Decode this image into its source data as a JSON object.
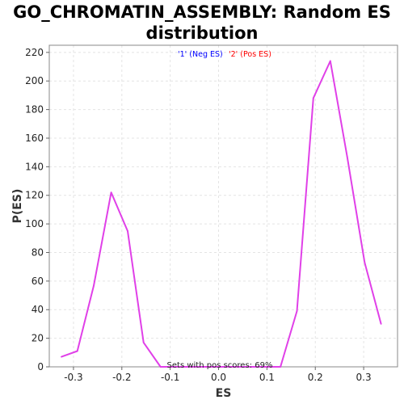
{
  "chart_data": {
    "type": "line",
    "title_line1": "GO_CHROMATIN_ASSEMBLY: Random ES",
    "title_line2": "distribution",
    "xlabel": "ES",
    "ylabel": "P(ES)",
    "xlim": [
      -0.35,
      0.37
    ],
    "ylim": [
      0,
      225
    ],
    "x_ticks": [
      "-0.3",
      "-0.2",
      "-0.1",
      "0.0",
      "0.1",
      "0.2",
      "0.3"
    ],
    "x_tick_values": [
      -0.3,
      -0.2,
      -0.1,
      0.0,
      0.1,
      0.2,
      0.3
    ],
    "y_ticks": [
      "0",
      "20",
      "40",
      "60",
      "80",
      "100",
      "120",
      "140",
      "160",
      "180",
      "200",
      "220"
    ],
    "y_tick_values": [
      0,
      20,
      40,
      60,
      80,
      100,
      120,
      140,
      160,
      180,
      200,
      220
    ],
    "grid": true,
    "legend": [
      {
        "label": "'1' (Neg ES)",
        "color": "#0000ff"
      },
      {
        "label": "'2' (Pos ES)",
        "color": "#ff0000"
      }
    ],
    "annotation": "Sets with pos scores: 69%",
    "series": [
      {
        "color": "#e040e8",
        "x": [
          -0.325,
          -0.292,
          -0.258,
          -0.222,
          -0.188,
          -0.155,
          -0.12,
          -0.086,
          -0.052,
          -0.018,
          0.017,
          0.05,
          0.084,
          0.128,
          0.162,
          0.196,
          0.231,
          0.266,
          0.302,
          0.336
        ],
        "y": [
          7,
          11,
          57,
          122,
          95,
          17,
          0,
          0,
          0,
          0,
          0,
          0,
          0,
          0,
          39,
          188,
          214,
          147,
          73,
          30
        ]
      }
    ]
  }
}
